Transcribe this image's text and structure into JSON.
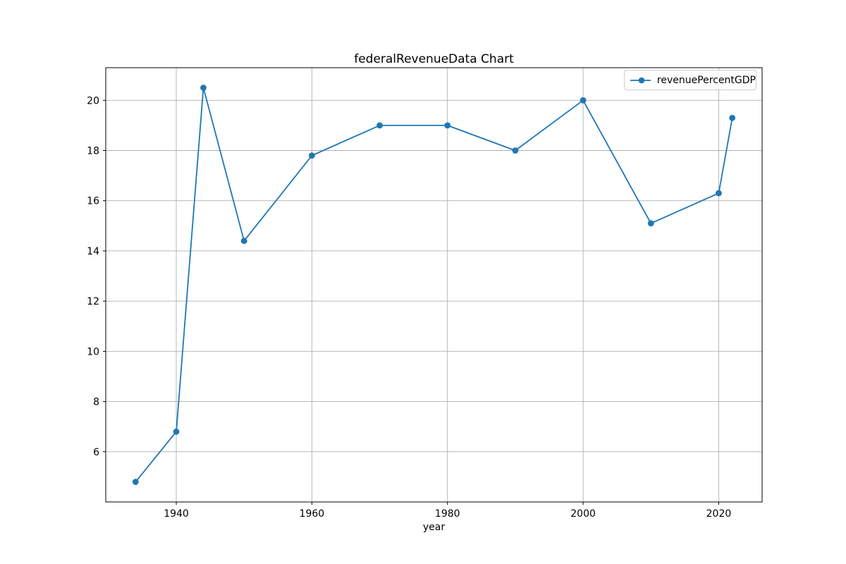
{
  "chart_data": {
    "type": "line",
    "title": "federalRevenueData Chart",
    "xlabel": "year",
    "ylabel": "",
    "series": [
      {
        "name": "revenuePercentGDP",
        "color": "#1f77b4",
        "marker": "circle",
        "x": [
          1934,
          1940,
          1944,
          1950,
          1960,
          1970,
          1980,
          1990,
          2000,
          2010,
          2020,
          2022
        ],
        "y": [
          4.8,
          6.8,
          20.5,
          14.4,
          17.8,
          19.0,
          19.0,
          18.0,
          20.0,
          15.1,
          16.3,
          19.3
        ]
      }
    ],
    "xlim": [
      1929.6,
      2026.4
    ],
    "ylim": [
      4.0,
      21.3
    ],
    "xticks": [
      1940,
      1960,
      1980,
      2000,
      2020
    ],
    "yticks": [
      6,
      8,
      10,
      12,
      14,
      16,
      18,
      20
    ],
    "xtick_labels": [
      "1940",
      "1960",
      "1980",
      "2000",
      "2020"
    ],
    "ytick_labels": [
      "6",
      "8",
      "10",
      "12",
      "14",
      "16",
      "18",
      "20"
    ],
    "grid": true,
    "grid_color": "#b0b0b0",
    "axes_edge_color": "#000000",
    "background_color": "#ffffff",
    "legend_position": "upper right"
  }
}
